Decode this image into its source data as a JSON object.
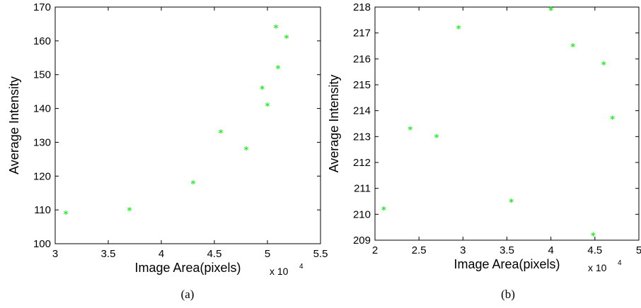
{
  "chart_data": [
    {
      "type": "scatter",
      "caption": "(a)",
      "xlabel": "Image Area(pixels)",
      "ylabel": "Average Intensity",
      "x_multiplier": "x 10",
      "x_exponent": "4",
      "xlim": [
        3,
        5.5
      ],
      "ylim": [
        100,
        170
      ],
      "xticks": [
        "3",
        "3.5",
        "4",
        "4.5",
        "5",
        "5.5"
      ],
      "yticks": [
        "100",
        "110",
        "120",
        "130",
        "140",
        "150",
        "160",
        "170"
      ],
      "marker": "*",
      "color": "#22ee22",
      "points": [
        {
          "x": 3.1,
          "y": 109
        },
        {
          "x": 3.7,
          "y": 110
        },
        {
          "x": 4.3,
          "y": 118
        },
        {
          "x": 4.56,
          "y": 133
        },
        {
          "x": 4.8,
          "y": 128
        },
        {
          "x": 4.95,
          "y": 146
        },
        {
          "x": 5.0,
          "y": 141
        },
        {
          "x": 5.1,
          "y": 152
        },
        {
          "x": 5.08,
          "y": 164
        },
        {
          "x": 5.18,
          "y": 161
        }
      ]
    },
    {
      "type": "scatter",
      "caption": "(b)",
      "xlabel": "Image Area(pixels)",
      "ylabel": "Average Intensity",
      "x_multiplier": "x 10",
      "x_exponent": "4",
      "xlim": [
        2,
        5
      ],
      "ylim": [
        209,
        218
      ],
      "xticks": [
        "2",
        "2.5",
        "3",
        "3.5",
        "4",
        "4.5",
        "5"
      ],
      "yticks": [
        "209",
        "210",
        "211",
        "212",
        "213",
        "214",
        "215",
        "216",
        "217",
        "218"
      ],
      "marker": "*",
      "color": "#22ee22",
      "points": [
        {
          "x": 2.1,
          "y": 210.2
        },
        {
          "x": 2.4,
          "y": 213.3
        },
        {
          "x": 2.7,
          "y": 213.0
        },
        {
          "x": 2.95,
          "y": 217.2
        },
        {
          "x": 3.55,
          "y": 210.5
        },
        {
          "x": 4.0,
          "y": 217.9
        },
        {
          "x": 4.25,
          "y": 216.5
        },
        {
          "x": 4.48,
          "y": 209.2
        },
        {
          "x": 4.6,
          "y": 215.8
        },
        {
          "x": 4.7,
          "y": 213.7
        }
      ]
    }
  ]
}
